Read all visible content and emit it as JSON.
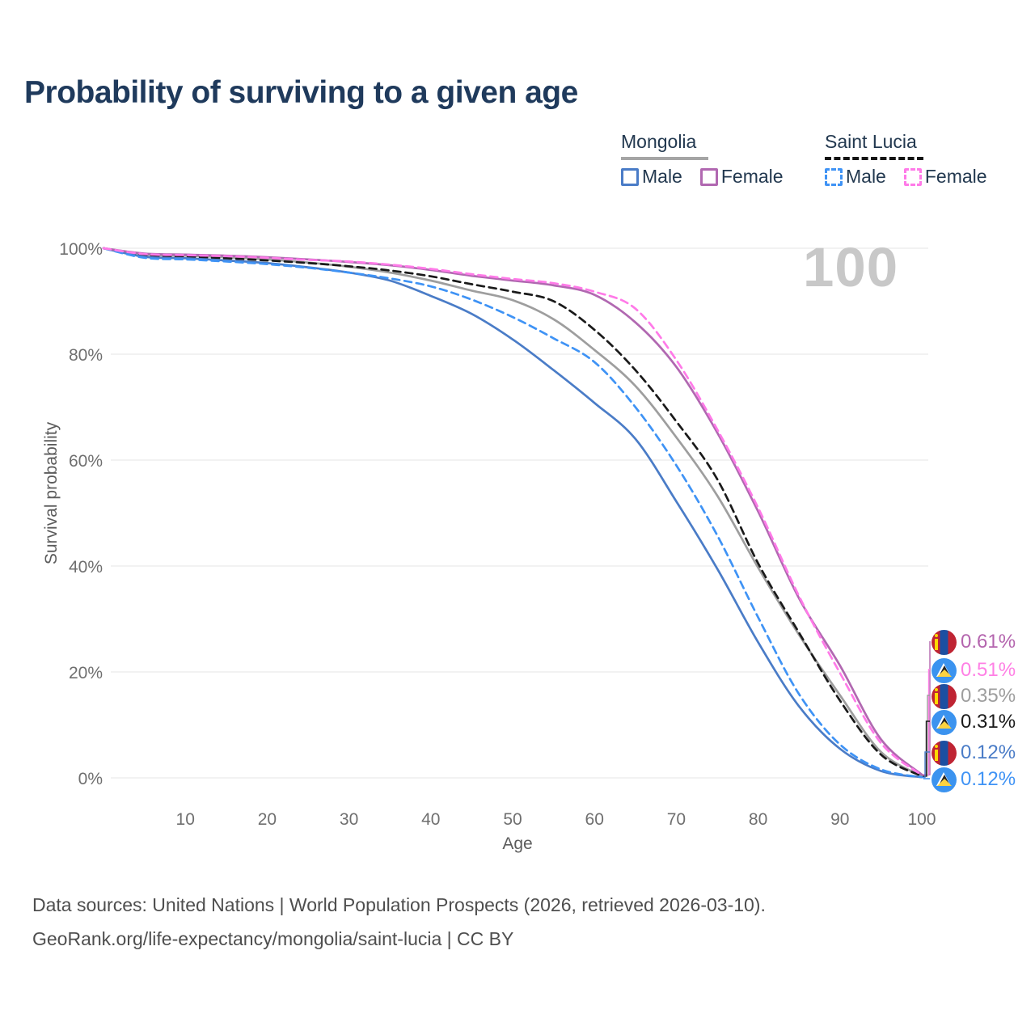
{
  "title": "Probability of surviving to a given age",
  "watermark": "100",
  "legend": {
    "groups": [
      {
        "label": "Mongolia",
        "line_style": "solid",
        "underline_color": "#a5a5a5",
        "items": [
          {
            "label": "Male",
            "color": "#4a7cc7",
            "dashed": false
          },
          {
            "label": "Female",
            "color": "#b168b1",
            "dashed": false
          }
        ]
      },
      {
        "label": "Saint Lucia",
        "line_style": "dashed",
        "underline_color": "#141414",
        "items": [
          {
            "label": "Male",
            "color": "#3f93f5",
            "dashed": true
          },
          {
            "label": "Female",
            "color": "#ff7ae8",
            "dashed": true
          }
        ]
      }
    ]
  },
  "axes": {
    "y_title": "Survival probability",
    "x_title": "Age",
    "y_tick_labels": [
      "100%",
      "80%",
      "60%",
      "40%",
      "20%",
      "0%"
    ],
    "x_tick_labels": [
      "10",
      "20",
      "30",
      "40",
      "50",
      "60",
      "70",
      "80",
      "90",
      "100"
    ]
  },
  "chart_data": {
    "type": "line",
    "title": "Probability of surviving to a given age",
    "xlabel": "Age",
    "ylabel": "Survival probability",
    "xlim": [
      0,
      100
    ],
    "ylim": [
      0,
      100
    ],
    "grid": "horizontal-only",
    "legend_position": "top-right",
    "y_ticks_pct": [
      100,
      80,
      60,
      40,
      20,
      0
    ],
    "x_ticks": [
      10,
      20,
      30,
      40,
      50,
      60,
      70,
      80,
      90,
      100
    ],
    "x_ages": [
      0,
      5,
      10,
      15,
      20,
      25,
      30,
      35,
      40,
      45,
      50,
      55,
      60,
      65,
      70,
      75,
      80,
      85,
      90,
      95,
      100
    ],
    "series": [
      {
        "name": "Mongolia Total",
        "country": "Mongolia",
        "group": "total",
        "color": "#9e9e9e",
        "dashed": false,
        "values_pct": [
          100,
          98.8,
          98.6,
          98.3,
          97.9,
          97.3,
          96.5,
          95.4,
          93.9,
          92.0,
          90.2,
          86.6,
          80.8,
          74.0,
          64.3,
          53.3,
          39.7,
          27.0,
          15.6,
          4.9,
          0.35
        ],
        "end_value": "0.35%"
      },
      {
        "name": "Saint Lucia Total",
        "country": "Saint Lucia",
        "group": "total",
        "color": "#1a1a1a",
        "dashed": true,
        "values_pct": [
          100,
          98.6,
          98.4,
          98.1,
          97.7,
          97.2,
          96.6,
          95.8,
          94.7,
          93.2,
          91.8,
          90.0,
          84.6,
          77.0,
          67.3,
          56.4,
          40.5,
          27.4,
          14.6,
          4.4,
          0.31
        ],
        "end_value": "0.31%"
      },
      {
        "name": "Mongolia Male",
        "country": "Mongolia",
        "group": "male",
        "color": "#4a7cc7",
        "dashed": false,
        "values_pct": [
          100,
          98.4,
          98.1,
          97.7,
          97.2,
          96.4,
          95.4,
          93.9,
          91.0,
          87.6,
          82.8,
          77.0,
          70.8,
          64.0,
          52.2,
          39.5,
          25.6,
          13.5,
          5.5,
          1.3,
          0.12
        ],
        "end_value": "0.12%"
      },
      {
        "name": "Saint Lucia Male",
        "country": "Saint Lucia",
        "group": "male",
        "color": "#3f93f5",
        "dashed": true,
        "values_pct": [
          100,
          98.2,
          97.9,
          97.5,
          97.0,
          96.3,
          95.4,
          94.3,
          92.8,
          90.3,
          87.0,
          83.0,
          78.5,
          70.0,
          59.0,
          45.8,
          30.3,
          15.8,
          6.3,
          1.6,
          0.12
        ],
        "end_value": "0.12%"
      },
      {
        "name": "Mongolia Female",
        "country": "Mongolia",
        "group": "female",
        "color": "#b168b1",
        "dashed": false,
        "values_pct": [
          100,
          99.0,
          98.8,
          98.6,
          98.3,
          97.9,
          97.4,
          96.8,
          95.9,
          94.8,
          93.9,
          93.0,
          91.2,
          86.0,
          77.6,
          65.2,
          50.3,
          33.9,
          21.2,
          7.3,
          0.61
        ],
        "end_value": "0.61%"
      },
      {
        "name": "Saint Lucia Female",
        "country": "Saint Lucia",
        "group": "female",
        "color": "#ff7ae8",
        "dashed": true,
        "values_pct": [
          100,
          98.9,
          98.7,
          98.5,
          98.2,
          97.8,
          97.5,
          96.9,
          96.1,
          95.1,
          94.2,
          93.4,
          91.8,
          88.6,
          78.9,
          65.8,
          51.0,
          34.3,
          19.8,
          6.6,
          0.51
        ],
        "end_value": "0.51%"
      }
    ],
    "end_labels": [
      {
        "value": "0.61%",
        "color": "#b465ae",
        "flag": "mongolia",
        "series": "Mongolia Female"
      },
      {
        "value": "0.51%",
        "color": "#ff80e5",
        "flag": "saint-lucia",
        "series": "Saint Lucia Female"
      },
      {
        "value": "0.35%",
        "color": "#9e9e9e",
        "flag": "mongolia",
        "series": "Mongolia Total"
      },
      {
        "value": "0.31%",
        "color": "#1a1a1a",
        "flag": "saint-lucia",
        "series": "Saint Lucia Total"
      },
      {
        "value": "0.12%",
        "color": "#4a7cc7",
        "flag": "mongolia",
        "series": "Mongolia Male"
      },
      {
        "value": "0.12%",
        "color": "#3f93f5",
        "flag": "saint-lucia",
        "series": "Saint Lucia Male"
      }
    ]
  },
  "footer": {
    "line1": "Data sources: United Nations | World Population Prospects (2026, retrieved 2026-03-10).",
    "line2": "GeoRank.org/life-expectancy/mongolia/saint-lucia | CC BY"
  }
}
